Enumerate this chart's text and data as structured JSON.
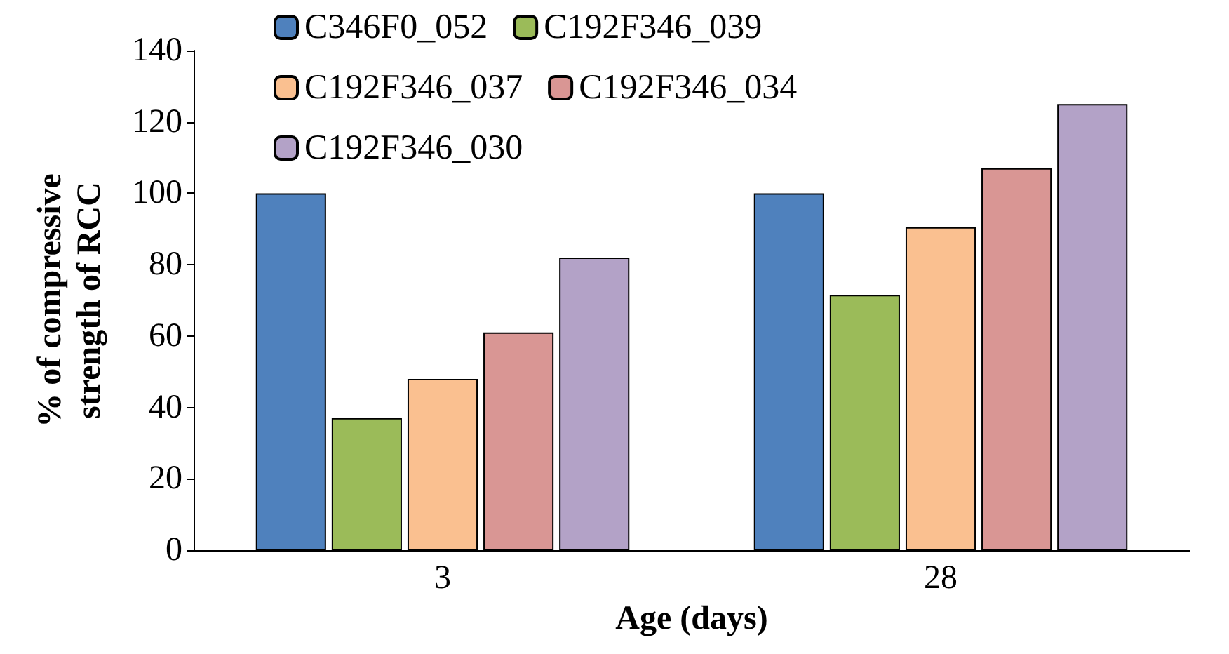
{
  "chart_data": {
    "type": "bar",
    "xlabel": "Age (days)",
    "ylabel": "% of compressive\nstrength of RCC",
    "categories": [
      "3",
      "28"
    ],
    "series": [
      {
        "name": "C346F0_052",
        "color": "#4f81bd",
        "values": [
          100,
          100
        ]
      },
      {
        "name": "C192F346_039",
        "color": "#9bbb59",
        "values": [
          37,
          71.5
        ]
      },
      {
        "name": "C192F346_037",
        "color": "#fac090",
        "values": [
          48,
          90.5
        ]
      },
      {
        "name": "C192F346_034",
        "color": "#d99694",
        "values": [
          61,
          107
        ]
      },
      {
        "name": "C192F346_030",
        "color": "#b3a2c7",
        "values": [
          82,
          125
        ]
      }
    ],
    "ylim": [
      0,
      140
    ],
    "yticks": [
      0,
      20,
      40,
      60,
      80,
      100,
      120,
      140
    ],
    "grid": false,
    "legend": "top"
  }
}
